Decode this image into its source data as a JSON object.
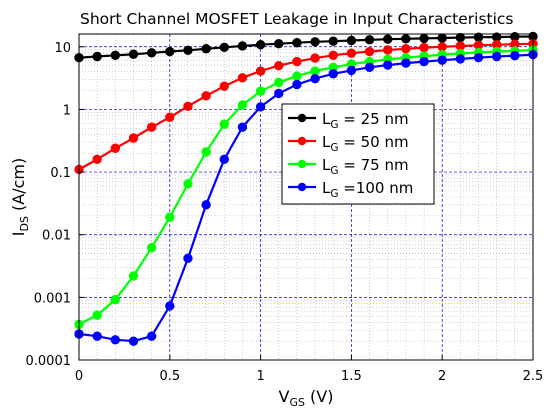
{
  "chart_data": {
    "type": "line",
    "title": "Short Channel MOSFET Leakage in Input Characteristics",
    "xlabel": {
      "main": "V",
      "sub": "GS",
      "unit": " (V)"
    },
    "ylabel": {
      "main": "I",
      "sub": "DS",
      "unit": " (A/cm)"
    },
    "x_scale": "linear",
    "y_scale": "log",
    "xlim": [
      0,
      2.5
    ],
    "ylim": [
      0.0001,
      16
    ],
    "x_ticks": [
      {
        "v": 0,
        "label": "0"
      },
      {
        "v": 0.5,
        "label": "0.5"
      },
      {
        "v": 1,
        "label": "1"
      },
      {
        "v": 1.5,
        "label": "1.5"
      },
      {
        "v": 2,
        "label": "2"
      },
      {
        "v": 2.5,
        "label": "2.5"
      }
    ],
    "y_ticks": [
      {
        "v": 0.0001,
        "label": "0.0001"
      },
      {
        "v": 0.001,
        "label": "0.001"
      },
      {
        "v": 0.01,
        "label": "0.01"
      },
      {
        "v": 0.1,
        "label": "0.1"
      },
      {
        "v": 1,
        "label": "1"
      },
      {
        "v": 10,
        "label": "10"
      }
    ],
    "grid": true,
    "legend_position": "center",
    "x": [
      0,
      0.1,
      0.2,
      0.3,
      0.4,
      0.5,
      0.6,
      0.7,
      0.8,
      0.9,
      1.0,
      1.1,
      1.2,
      1.3,
      1.4,
      1.5,
      1.6,
      1.7,
      1.8,
      1.9,
      2.0,
      2.1,
      2.2,
      2.3,
      2.4,
      2.5
    ],
    "series": [
      {
        "name": "L_G = 25 nm",
        "label_main": "L",
        "label_sub": "G",
        "label_rest": " = 25 nm",
        "color": "#000000",
        "values": [
          6.7,
          7.0,
          7.3,
          7.6,
          8.0,
          8.4,
          8.8,
          9.3,
          9.8,
          10.3,
          10.8,
          11.2,
          11.6,
          12.0,
          12.3,
          12.6,
          12.9,
          13.2,
          13.4,
          13.6,
          13.8,
          14.0,
          14.2,
          14.3,
          14.5,
          14.6
        ]
      },
      {
        "name": "L_G = 50 nm",
        "label_main": "L",
        "label_sub": "G",
        "label_rest": " = 50 nm",
        "color": "#ff0000",
        "values": [
          0.11,
          0.16,
          0.24,
          0.35,
          0.52,
          0.75,
          1.12,
          1.65,
          2.35,
          3.2,
          4.1,
          5.0,
          5.8,
          6.6,
          7.3,
          7.9,
          8.4,
          8.9,
          9.3,
          9.7,
          10.0,
          10.3,
          10.6,
          10.8,
          11.0,
          11.2
        ]
      },
      {
        "name": "L_G = 75 nm",
        "label_main": "L",
        "label_sub": "G",
        "label_rest": " = 75 nm",
        "color": "#00ff00",
        "values": [
          0.00037,
          0.00052,
          0.00092,
          0.0022,
          0.0062,
          0.019,
          0.065,
          0.21,
          0.58,
          1.18,
          1.95,
          2.7,
          3.4,
          4.1,
          4.7,
          5.3,
          5.8,
          6.3,
          6.7,
          7.1,
          7.5,
          7.8,
          8.1,
          8.4,
          8.6,
          8.9
        ]
      },
      {
        "name": "L_G =100 nm",
        "label_main": "L",
        "label_sub": "G",
        "label_rest": " =100 nm",
        "color": "#0000ff",
        "values": [
          0.00026,
          0.00024,
          0.00021,
          0.0002,
          0.00024,
          0.00073,
          0.0042,
          0.03,
          0.16,
          0.52,
          1.1,
          1.8,
          2.5,
          3.1,
          3.7,
          4.2,
          4.7,
          5.1,
          5.5,
          5.8,
          6.1,
          6.4,
          6.7,
          7.0,
          7.2,
          7.5
        ]
      }
    ]
  }
}
